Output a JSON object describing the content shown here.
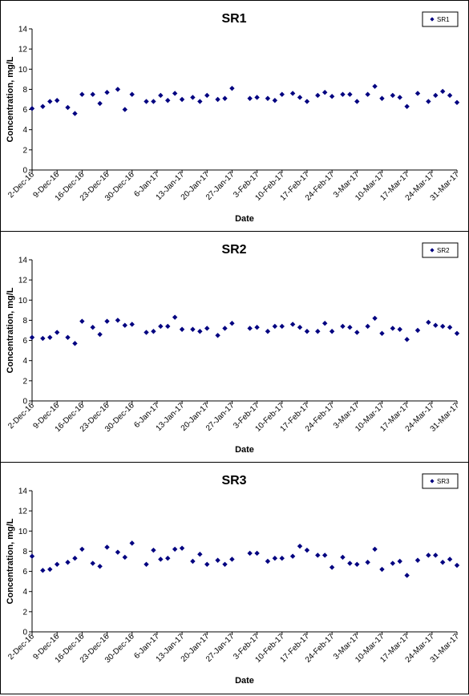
{
  "chart_data": [
    {
      "type": "scatter",
      "title": "SR1",
      "xlabel": "Date",
      "ylabel": "Concentration, mg/L",
      "legend": "upper right",
      "grid": false,
      "x": [
        "2-Dec-16",
        "5-Dec-16",
        "7-Dec-16",
        "9-Dec-16",
        "12-Dec-16",
        "14-Dec-16",
        "16-Dec-16",
        "19-Dec-16",
        "21-Dec-16",
        "23-Dec-16",
        "26-Dec-16",
        "28-Dec-16",
        "30-Dec-16",
        "3-Jan-17",
        "5-Jan-17",
        "7-Jan-17",
        "9-Jan-17",
        "11-Jan-17",
        "13-Jan-17",
        "16-Jan-17",
        "18-Jan-17",
        "20-Jan-17",
        "23-Jan-17",
        "25-Jan-17",
        "27-Jan-17",
        "1-Feb-17",
        "3-Feb-17",
        "6-Feb-17",
        "8-Feb-17",
        "10-Feb-17",
        "13-Feb-17",
        "15-Feb-17",
        "17-Feb-17",
        "20-Feb-17",
        "22-Feb-17",
        "24-Feb-17",
        "27-Feb-17",
        "1-Mar-17",
        "3-Mar-17",
        "6-Mar-17",
        "8-Mar-17",
        "10-Mar-17",
        "13-Mar-17",
        "15-Mar-17",
        "17-Mar-17",
        "20-Mar-17",
        "23-Mar-17",
        "25-Mar-17",
        "27-Mar-17",
        "29-Mar-17",
        "31-Mar-17"
      ],
      "series": [
        {
          "name": "SR1",
          "color": "#000080",
          "values": [
            6.1,
            6.3,
            6.8,
            6.9,
            6.2,
            5.6,
            7.5,
            7.5,
            6.6,
            7.7,
            8.0,
            6.0,
            7.5,
            6.8,
            6.8,
            7.4,
            6.9,
            7.6,
            7.0,
            7.2,
            6.8,
            7.4,
            7.0,
            7.1,
            8.1,
            7.1,
            7.2,
            7.1,
            6.9,
            7.5,
            7.6,
            7.2,
            6.8,
            7.4,
            7.7,
            7.3,
            7.5,
            7.5,
            6.8,
            7.5,
            8.3,
            7.1,
            7.4,
            7.2,
            6.3,
            7.6,
            6.8,
            7.4,
            7.8,
            7.4,
            6.7
          ]
        }
      ],
      "xlim": [
        "2-Dec-16",
        "31-Mar-17"
      ],
      "xticks": [
        "2-Dec-16",
        "9-Dec-16",
        "16-Dec-16",
        "23-Dec-16",
        "30-Dec-16",
        "6-Jan-17",
        "13-Jan-17",
        "20-Jan-17",
        "27-Jan-17",
        "3-Feb-17",
        "10-Feb-17",
        "17-Feb-17",
        "24-Feb-17",
        "3-Mar-17",
        "10-Mar-17",
        "17-Mar-17",
        "24-Mar-17",
        "31-Mar-17"
      ],
      "ylim": [
        0,
        14
      ],
      "yticks": [
        0,
        2,
        4,
        6,
        8,
        10,
        12,
        14
      ]
    },
    {
      "type": "scatter",
      "title": "SR2",
      "xlabel": "Date",
      "ylabel": "Concentration, mg/L",
      "legend": "upper right",
      "grid": false,
      "x": [
        "2-Dec-16",
        "5-Dec-16",
        "7-Dec-16",
        "9-Dec-16",
        "12-Dec-16",
        "14-Dec-16",
        "16-Dec-16",
        "19-Dec-16",
        "21-Dec-16",
        "23-Dec-16",
        "26-Dec-16",
        "28-Dec-16",
        "30-Dec-16",
        "3-Jan-17",
        "5-Jan-17",
        "7-Jan-17",
        "9-Jan-17",
        "11-Jan-17",
        "13-Jan-17",
        "16-Jan-17",
        "18-Jan-17",
        "20-Jan-17",
        "23-Jan-17",
        "25-Jan-17",
        "27-Jan-17",
        "1-Feb-17",
        "3-Feb-17",
        "6-Feb-17",
        "8-Feb-17",
        "10-Feb-17",
        "13-Feb-17",
        "15-Feb-17",
        "17-Feb-17",
        "20-Feb-17",
        "22-Feb-17",
        "24-Feb-17",
        "27-Feb-17",
        "1-Mar-17",
        "3-Mar-17",
        "6-Mar-17",
        "8-Mar-17",
        "10-Mar-17",
        "13-Mar-17",
        "15-Mar-17",
        "17-Mar-17",
        "20-Mar-17",
        "23-Mar-17",
        "25-Mar-17",
        "27-Mar-17",
        "29-Mar-17",
        "31-Mar-17"
      ],
      "series": [
        {
          "name": "SR2",
          "color": "#000080",
          "values": [
            6.3,
            6.2,
            6.3,
            6.8,
            6.3,
            5.7,
            7.9,
            7.3,
            6.6,
            7.9,
            8.0,
            7.5,
            7.6,
            6.8,
            6.9,
            7.4,
            7.4,
            8.3,
            7.1,
            7.1,
            6.9,
            7.2,
            6.5,
            7.2,
            7.7,
            7.2,
            7.3,
            6.9,
            7.4,
            7.4,
            7.6,
            7.3,
            6.9,
            6.9,
            7.7,
            6.9,
            7.4,
            7.3,
            6.8,
            7.4,
            8.2,
            6.7,
            7.2,
            7.1,
            6.1,
            7.0,
            7.8,
            7.5,
            7.4,
            7.3,
            6.7
          ]
        }
      ],
      "xlim": [
        "2-Dec-16",
        "31-Mar-17"
      ],
      "xticks": [
        "2-Dec-16",
        "9-Dec-16",
        "16-Dec-16",
        "23-Dec-16",
        "30-Dec-16",
        "6-Jan-17",
        "13-Jan-17",
        "20-Jan-17",
        "27-Jan-17",
        "3-Feb-17",
        "10-Feb-17",
        "17-Feb-17",
        "24-Feb-17",
        "3-Mar-17",
        "10-Mar-17",
        "17-Mar-17",
        "24-Mar-17",
        "31-Mar-17"
      ],
      "ylim": [
        0,
        14
      ],
      "yticks": [
        0,
        2,
        4,
        6,
        8,
        10,
        12,
        14
      ]
    },
    {
      "type": "scatter",
      "title": "SR3",
      "xlabel": "Date",
      "ylabel": "Concentration, mg/L",
      "legend": "upper right",
      "grid": false,
      "x": [
        "2-Dec-16",
        "5-Dec-16",
        "7-Dec-16",
        "9-Dec-16",
        "12-Dec-16",
        "14-Dec-16",
        "16-Dec-16",
        "19-Dec-16",
        "21-Dec-16",
        "23-Dec-16",
        "26-Dec-16",
        "28-Dec-16",
        "30-Dec-16",
        "3-Jan-17",
        "5-Jan-17",
        "7-Jan-17",
        "9-Jan-17",
        "11-Jan-17",
        "13-Jan-17",
        "16-Jan-17",
        "18-Jan-17",
        "20-Jan-17",
        "23-Jan-17",
        "25-Jan-17",
        "27-Jan-17",
        "1-Feb-17",
        "3-Feb-17",
        "6-Feb-17",
        "8-Feb-17",
        "10-Feb-17",
        "13-Feb-17",
        "15-Feb-17",
        "17-Feb-17",
        "20-Feb-17",
        "22-Feb-17",
        "24-Feb-17",
        "27-Feb-17",
        "1-Mar-17",
        "3-Mar-17",
        "6-Mar-17",
        "8-Mar-17",
        "10-Mar-17",
        "13-Mar-17",
        "15-Mar-17",
        "17-Mar-17",
        "20-Mar-17",
        "23-Mar-17",
        "25-Mar-17",
        "27-Mar-17",
        "29-Mar-17",
        "31-Mar-17"
      ],
      "series": [
        {
          "name": "SR3",
          "color": "#000080",
          "values": [
            7.5,
            6.1,
            6.2,
            6.7,
            6.9,
            7.3,
            8.2,
            6.8,
            6.5,
            8.4,
            7.9,
            7.4,
            8.8,
            6.7,
            8.1,
            7.2,
            7.3,
            8.2,
            8.3,
            7.0,
            7.7,
            6.7,
            7.1,
            6.7,
            7.2,
            7.8,
            7.8,
            7.0,
            7.3,
            7.3,
            7.5,
            8.5,
            8.1,
            7.6,
            7.6,
            6.4,
            7.4,
            6.8,
            6.7,
            6.9,
            8.2,
            6.2,
            6.8,
            7.0,
            5.6,
            7.1,
            7.6,
            7.6,
            6.9,
            7.2,
            6.6
          ]
        }
      ],
      "xlim": [
        "2-Dec-16",
        "31-Mar-17"
      ],
      "xticks": [
        "2-Dec-16",
        "9-Dec-16",
        "16-Dec-16",
        "23-Dec-16",
        "30-Dec-16",
        "6-Jan-17",
        "13-Jan-17",
        "20-Jan-17",
        "27-Jan-17",
        "3-Feb-17",
        "10-Feb-17",
        "17-Feb-17",
        "24-Feb-17",
        "3-Mar-17",
        "10-Mar-17",
        "17-Mar-17",
        "24-Mar-17",
        "31-Mar-17"
      ],
      "ylim": [
        0,
        14
      ],
      "yticks": [
        0,
        2,
        4,
        6,
        8,
        10,
        12,
        14
      ]
    }
  ]
}
